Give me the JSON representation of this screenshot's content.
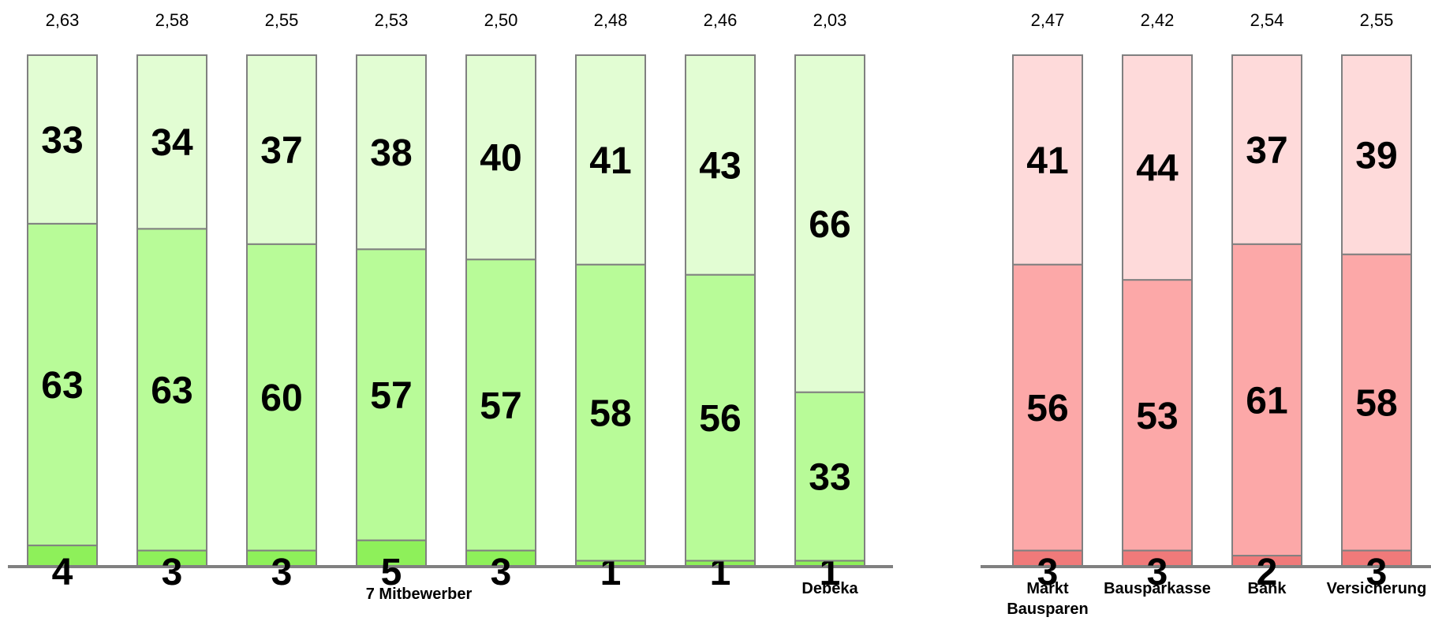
{
  "chart_data": [
    {
      "type": "bar",
      "stacked": true,
      "percent_scale": [
        0,
        100
      ],
      "group_label": "7 Mitbewerber",
      "categories": [
        "",
        "",
        "",
        "",
        "",
        "",
        "",
        "Debeka"
      ],
      "averages": [
        "2,63",
        "2,58",
        "2,55",
        "2,53",
        "2,50",
        "2,48",
        "2,46",
        "2,03"
      ],
      "series": [
        {
          "values": [
            4,
            3,
            3,
            5,
            3,
            1,
            1,
            1
          ],
          "color": "#8ef05a"
        },
        {
          "values": [
            63,
            63,
            60,
            57,
            57,
            58,
            56,
            33
          ],
          "color": "#b8fb98"
        },
        {
          "values": [
            33,
            34,
            37,
            38,
            40,
            41,
            43,
            66
          ],
          "color": "#e2fdd3"
        }
      ]
    },
    {
      "type": "bar",
      "stacked": true,
      "percent_scale": [
        0,
        100
      ],
      "categories": [
        "Markt Bausparen",
        "Bausparkasse",
        "Bank",
        "Versicherung"
      ],
      "averages": [
        "2,47",
        "2,42",
        "2,54",
        "2,55"
      ],
      "series": [
        {
          "values": [
            3,
            3,
            2,
            3
          ],
          "color": "#f07a7a"
        },
        {
          "values": [
            56,
            53,
            61,
            58
          ],
          "color": "#fca8a8"
        },
        {
          "values": [
            41,
            44,
            37,
            39
          ],
          "color": "#fedada"
        }
      ]
    }
  ]
}
